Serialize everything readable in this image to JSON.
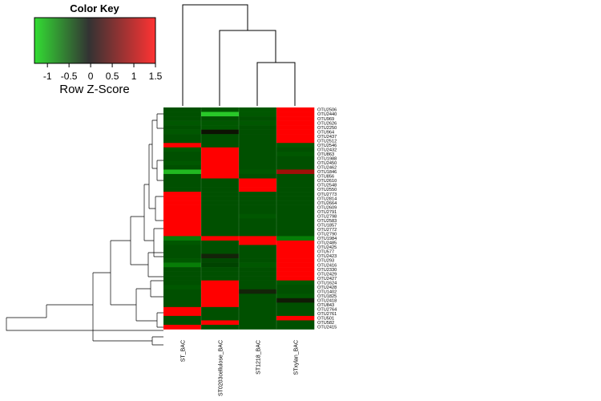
{
  "chart_data": {
    "type": "heatmap",
    "color_key": {
      "title": "Color Key",
      "subtitle": "Row Z-Score",
      "range": [
        -1.3,
        1.5
      ],
      "ticks": [
        "-1",
        "-0.5",
        "0",
        "0.5",
        "1",
        "1.5"
      ],
      "tick_values": [
        -1,
        -0.5,
        0,
        0.5,
        1,
        1.5
      ],
      "low_color": "#33dd33",
      "mid_color": "#333333",
      "high_color": "#ff3333"
    },
    "columns": [
      "ST_BAC",
      "ST0203cellulose_BAC",
      "ST1218_BAC",
      "STxylan_BAC"
    ],
    "rows": [
      "OTU2506",
      "OTU2440",
      "OTU969",
      "OTU2626",
      "OTU2250",
      "OTU964",
      "OTU2437",
      "OTU2512",
      "OTU2546",
      "OTU2432",
      "OTU863",
      "OTU1988",
      "OTU2450",
      "OTU2462",
      "OTU1846",
      "OTU856",
      "OTU2610",
      "OTU2548",
      "OTU2550",
      "OTU2773",
      "OTU2814",
      "OTU2664",
      "OTU2609",
      "OTU2791",
      "OTU2798",
      "OTU2583",
      "OTU1857",
      "OTU2772",
      "OTU2790",
      "OTU1984",
      "OTU2485",
      "OTU2425",
      "OTU577",
      "OTU2423",
      "OTU293",
      "OTU2416",
      "OTU2330",
      "OTU2429",
      "OTU2427",
      "OTU1624",
      "OTU2428",
      "OTU1402",
      "OTU1825",
      "OTU2418",
      "OTU843",
      "OTU2764",
      "OTU2761",
      "OTU501",
      "OTU582",
      "OTU2415"
    ],
    "values": [
      [
        -0.8,
        -0.9,
        -0.9,
        1.5
      ],
      [
        -0.8,
        -1.3,
        -0.9,
        1.5
      ],
      [
        -0.8,
        -0.8,
        -0.8,
        1.5
      ],
      [
        -0.9,
        -0.9,
        -0.9,
        1.5
      ],
      [
        -0.8,
        -0.9,
        -0.8,
        1.5
      ],
      [
        -0.9,
        0.0,
        -0.8,
        1.5
      ],
      [
        -0.8,
        -0.8,
        -0.8,
        1.4
      ],
      [
        -0.8,
        -0.8,
        -0.8,
        1.5
      ],
      [
        0.8,
        -0.8,
        -0.8,
        -0.9
      ],
      [
        -0.9,
        1.5,
        -0.8,
        -0.8
      ],
      [
        -0.8,
        1.5,
        -0.8,
        -0.9
      ],
      [
        -0.8,
        1.5,
        -0.8,
        -0.8
      ],
      [
        -0.9,
        1.5,
        -0.8,
        -0.8
      ],
      [
        -0.8,
        1.5,
        -0.8,
        -0.8
      ],
      [
        -1.2,
        1.3,
        -0.9,
        0.3
      ],
      [
        -0.8,
        1.4,
        -0.8,
        -0.8
      ],
      [
        -0.8,
        -0.8,
        1.5,
        -0.8
      ],
      [
        -0.8,
        -0.8,
        1.5,
        -0.8
      ],
      [
        -0.8,
        -0.8,
        1.5,
        -0.8
      ],
      [
        1.5,
        -0.8,
        -0.8,
        -0.8
      ],
      [
        1.5,
        -0.8,
        -0.8,
        -0.8
      ],
      [
        1.5,
        -0.8,
        -0.8,
        -0.8
      ],
      [
        1.5,
        -0.8,
        -0.8,
        -0.8
      ],
      [
        1.5,
        -0.8,
        -0.8,
        -0.8
      ],
      [
        1.5,
        -0.8,
        -0.9,
        -0.8
      ],
      [
        1.5,
        -0.8,
        -0.8,
        -0.8
      ],
      [
        1.5,
        -0.8,
        -0.8,
        -0.8
      ],
      [
        1.5,
        -0.8,
        -0.8,
        -0.8
      ],
      [
        1.5,
        -0.8,
        -0.8,
        -0.8
      ],
      [
        -1.0,
        1.0,
        0.9,
        -1.0
      ],
      [
        -0.9,
        -0.8,
        1.4,
        1.4
      ],
      [
        -0.8,
        -0.8,
        -0.8,
        1.5
      ],
      [
        -0.8,
        -0.8,
        -0.8,
        1.5
      ],
      [
        -0.8,
        -0.4,
        -0.8,
        1.5
      ],
      [
        -0.9,
        -0.7,
        -0.8,
        1.5
      ],
      [
        -1.0,
        -0.6,
        -0.9,
        1.5
      ],
      [
        -0.8,
        -0.8,
        -0.8,
        1.5
      ],
      [
        -0.8,
        -0.8,
        -0.8,
        1.5
      ],
      [
        -0.8,
        -0.8,
        -0.8,
        1.5
      ],
      [
        -0.8,
        1.5,
        -0.8,
        -0.9
      ],
      [
        -0.9,
        1.5,
        -0.8,
        -0.8
      ],
      [
        -0.8,
        1.5,
        -0.4,
        -0.8
      ],
      [
        -0.8,
        1.5,
        -0.8,
        -0.9
      ],
      [
        -0.8,
        1.5,
        -0.8,
        -0.2
      ],
      [
        -0.8,
        1.5,
        -0.8,
        -0.8
      ],
      [
        1.5,
        -0.8,
        -0.8,
        -0.8
      ],
      [
        1.5,
        -0.8,
        -0.8,
        -0.8
      ],
      [
        -0.8,
        -0.8,
        -0.8,
        1.5
      ],
      [
        -0.8,
        1.5,
        -0.8,
        -0.8
      ],
      [
        1.5,
        -0.8,
        -0.8,
        -0.8
      ]
    ]
  }
}
